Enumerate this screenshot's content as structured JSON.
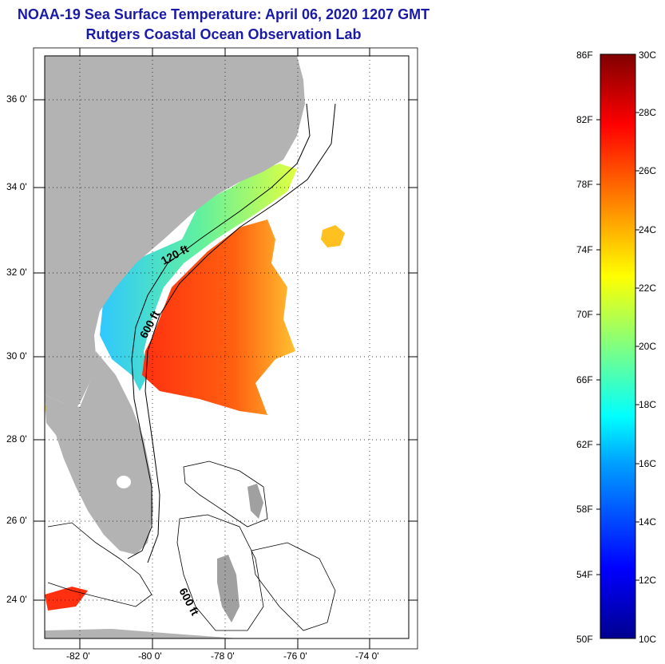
{
  "title": "NOAA-19 Sea Surface Temperature:  April 06, 2020 1207 GMT",
  "subtitle": "Rutgers Coastal Ocean Observation Lab",
  "map": {
    "lat_labels": [
      "36 0'",
      "34 0'",
      "32 0'",
      "30 0'",
      "28 0'",
      "26 0'",
      "24 0'"
    ],
    "lon_labels": [
      "-82 0'",
      "-80 0'",
      "-78 0'",
      "-76 0'",
      "-74 0'"
    ],
    "isobath_labels": [
      "120 ft",
      "600 ft",
      "600 ft"
    ],
    "land_color": "#b3b3b3",
    "grid": "dotted"
  },
  "colorbar": {
    "fahrenheit": [
      "86F",
      "82F",
      "78F",
      "74F",
      "70F",
      "66F",
      "62F",
      "58F",
      "54F",
      "50F"
    ],
    "celsius": [
      "30C",
      "28C",
      "26C",
      "24C",
      "22C",
      "20C",
      "18C",
      "16C",
      "14C",
      "12C",
      "10C"
    ],
    "min_c": 10,
    "max_c": 30,
    "colors": [
      "#00008f",
      "#0000ff",
      "#00a0ff",
      "#00ffff",
      "#80ff80",
      "#ffff00",
      "#ff8000",
      "#ff0000",
      "#800000"
    ]
  }
}
